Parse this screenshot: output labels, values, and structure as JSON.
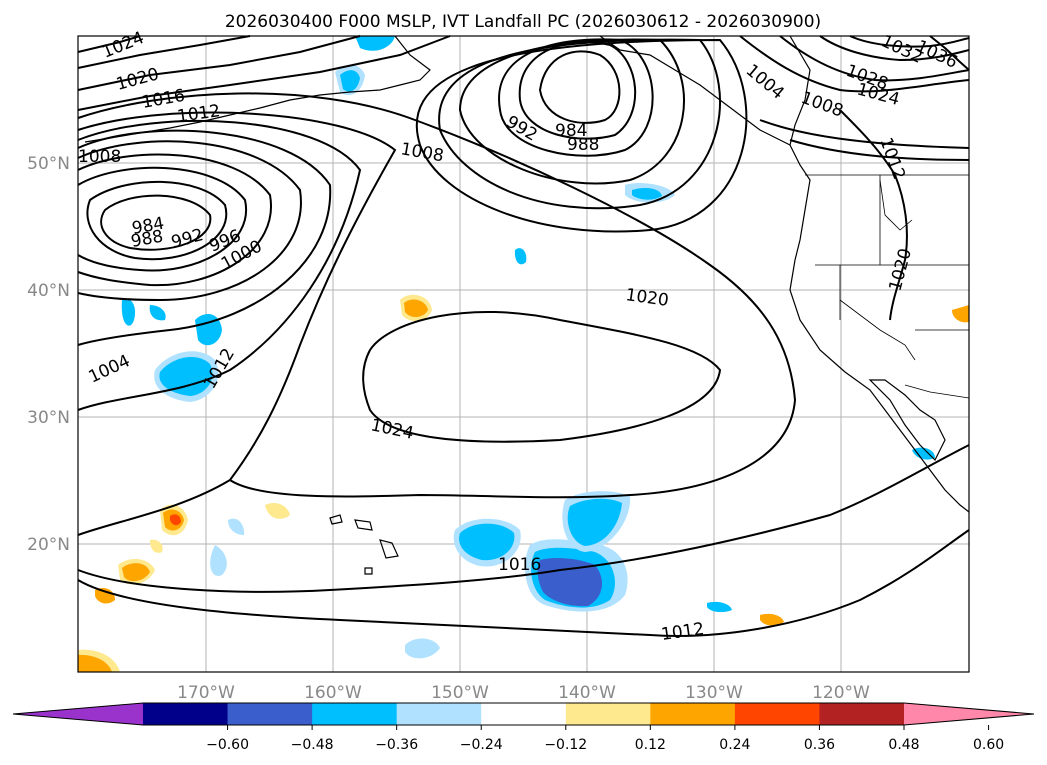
{
  "title": "2026030400 F000 MSLP, IVT Landfall PC (2026030612 - 2026030900)",
  "map": {
    "lon_labels": [
      "170°W",
      "160°W",
      "150°W",
      "140°W",
      "130°W",
      "120°W"
    ],
    "lat_labels": [
      "50°N",
      "40°N",
      "30°N",
      "20°N"
    ],
    "gridlines": true
  },
  "isobars": {
    "labels": [
      "1024",
      "1020",
      "1016",
      "1012",
      "1008",
      "1004",
      "1000",
      "996",
      "992",
      "988",
      "984",
      "1036",
      "1032",
      "1028"
    ],
    "low_centers": [
      {
        "label": "984"
      },
      {
        "label": "984"
      }
    ],
    "high_center": {
      "label": "1024"
    }
  },
  "colorbar": {
    "ticks": [
      "−0.60",
      "−0.48",
      "−0.36",
      "−0.24",
      "−0.12",
      "0.12",
      "0.24",
      "0.36",
      "0.48",
      "0.60"
    ],
    "colors": [
      "#9933cc",
      "#00008b",
      "#3a5fcd",
      "#00bfff",
      "#b0e2ff",
      "#ffffff",
      "#ffe98f",
      "#ffa500",
      "#ff4500",
      "#b22222",
      "#ff88aa"
    ],
    "extend": "both"
  }
}
